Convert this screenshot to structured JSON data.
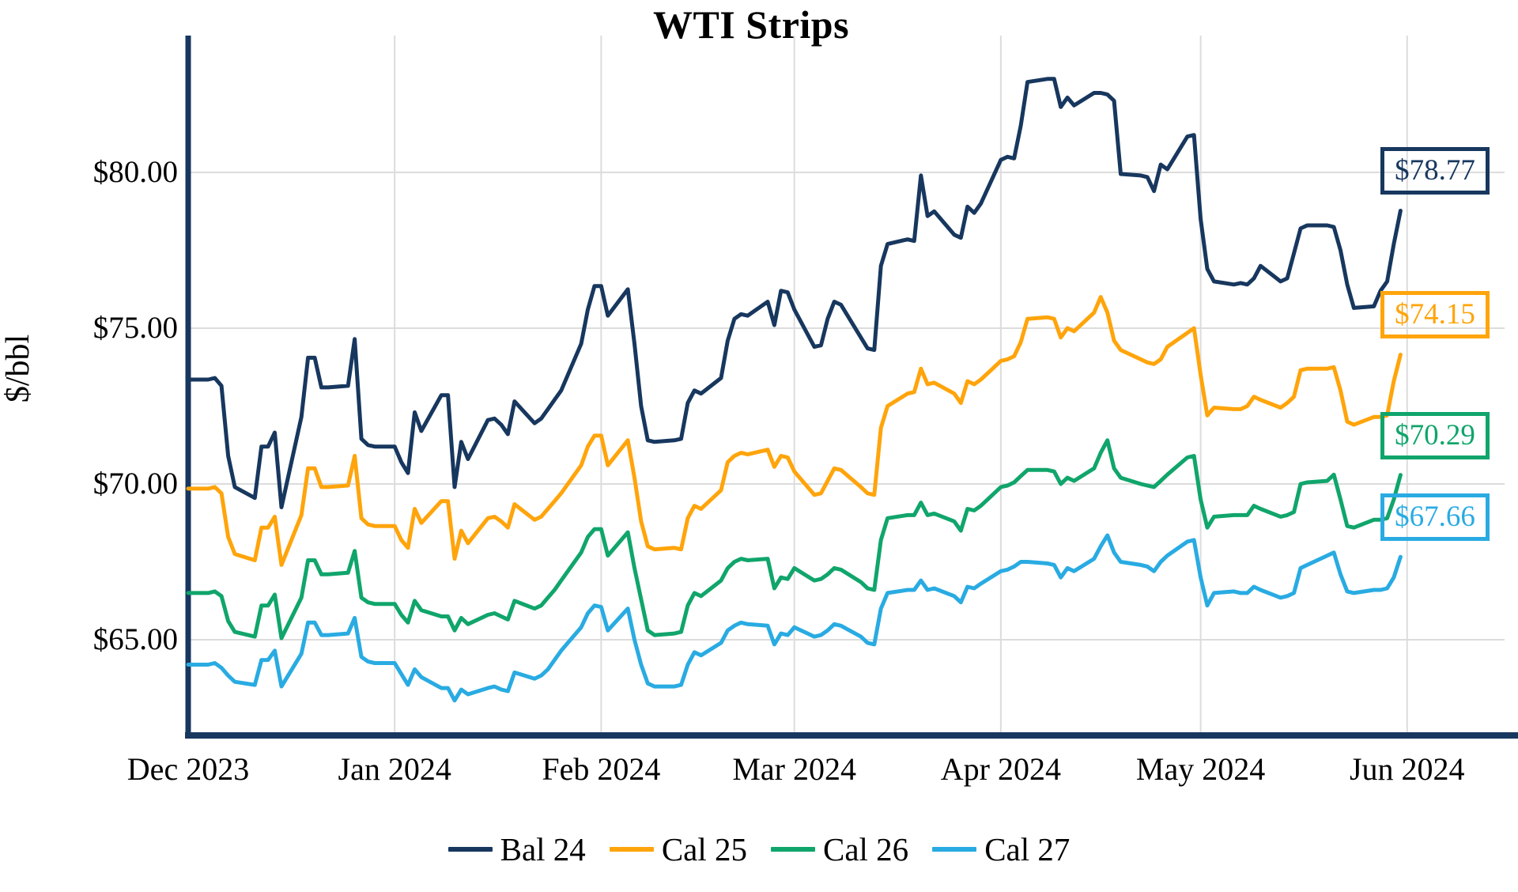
{
  "title": "WTI Strips",
  "y_axis": {
    "label": "$/bbl",
    "ticks": [
      {
        "value": 65,
        "label": "$65.00"
      },
      {
        "value": 70,
        "label": "$70.00"
      },
      {
        "value": 75,
        "label": "$75.00"
      },
      {
        "value": 80,
        "label": "$80.00"
      }
    ]
  },
  "x_axis": {
    "months": [
      {
        "label": "Dec 2023",
        "day": 0
      },
      {
        "label": "Jan 2024",
        "day": 31
      },
      {
        "label": "Feb 2024",
        "day": 62
      },
      {
        "label": "Mar 2024",
        "day": 91
      },
      {
        "label": "Apr 2024",
        "day": 122
      },
      {
        "label": "May 2024",
        "day": 152
      },
      {
        "label": "Jun 2024",
        "day": 183
      }
    ]
  },
  "chart_data": {
    "type": "line",
    "title": "WTI Strips",
    "ylabel": "$/bbl",
    "xlabel": "",
    "ylim": [
      62,
      84.5
    ],
    "grid": true,
    "legend_position": "bottom",
    "x_unit": "calendar day offset from 2023-12-01, weekdays only",
    "days": [
      0,
      3,
      4,
      5,
      6,
      7,
      10,
      11,
      12,
      13,
      14,
      17,
      18,
      19,
      20,
      21,
      24,
      25,
      26,
      27,
      28,
      31,
      32,
      33,
      34,
      35,
      38,
      39,
      40,
      41,
      42,
      45,
      46,
      47,
      48,
      49,
      52,
      53,
      54,
      55,
      56,
      59,
      60,
      61,
      62,
      63,
      66,
      67,
      68,
      69,
      70,
      73,
      74,
      75,
      76,
      77,
      80,
      81,
      82,
      83,
      84,
      87,
      88,
      89,
      90,
      91,
      94,
      95,
      96,
      97,
      98,
      101,
      102,
      103,
      104,
      105,
      108,
      109,
      110,
      111,
      112,
      115,
      116,
      117,
      118,
      119,
      122,
      123,
      124,
      125,
      126,
      129,
      130,
      131,
      132,
      133,
      136,
      137,
      138,
      139,
      140,
      143,
      144,
      145,
      146,
      147,
      150,
      151,
      152,
      153,
      154,
      157,
      158,
      159,
      160,
      161,
      164,
      165,
      166,
      167,
      168,
      171,
      172,
      173,
      174,
      175,
      178,
      179,
      180,
      181,
      182
    ],
    "series": [
      {
        "name": "Bal 24",
        "color": "#17375E",
        "end_label": "$78.77",
        "end_value": 78.77,
        "values": [
          73.35,
          73.35,
          73.4,
          73.15,
          70.9,
          69.9,
          69.55,
          71.2,
          71.2,
          71.65,
          69.25,
          72.15,
          74.05,
          74.05,
          73.1,
          73.1,
          73.15,
          74.65,
          71.45,
          71.25,
          71.2,
          71.2,
          70.7,
          70.35,
          72.3,
          71.7,
          72.85,
          72.85,
          69.9,
          71.35,
          70.8,
          72.05,
          72.1,
          71.9,
          71.6,
          72.65,
          71.95,
          72.1,
          72.4,
          72.7,
          73.0,
          74.5,
          75.6,
          76.35,
          76.35,
          75.4,
          76.25,
          74.5,
          72.5,
          71.4,
          71.35,
          71.4,
          71.45,
          72.6,
          73.0,
          72.9,
          73.4,
          74.6,
          75.3,
          75.45,
          75.4,
          75.85,
          75.1,
          76.2,
          76.15,
          75.6,
          74.4,
          74.45,
          75.3,
          75.85,
          75.75,
          74.7,
          74.35,
          74.3,
          77.0,
          77.7,
          77.85,
          77.8,
          79.9,
          78.6,
          78.75,
          78.0,
          77.9,
          78.9,
          78.7,
          79.0,
          80.4,
          80.5,
          80.45,
          81.5,
          82.9,
          83.0,
          83.0,
          82.1,
          82.4,
          82.15,
          82.55,
          82.55,
          82.5,
          82.3,
          79.95,
          79.9,
          79.85,
          79.4,
          80.25,
          80.1,
          81.15,
          81.2,
          78.5,
          76.9,
          76.5,
          76.4,
          76.45,
          76.4,
          76.6,
          77.0,
          76.5,
          76.6,
          77.4,
          78.2,
          78.3,
          78.3,
          78.25,
          77.5,
          76.4,
          75.65,
          75.7,
          76.2,
          76.5,
          77.7,
          78.77
        ]
      },
      {
        "name": "Cal 25",
        "color": "#FFA40B",
        "end_label": "$74.15",
        "end_value": 74.15,
        "values": [
          69.85,
          69.85,
          69.9,
          69.7,
          68.3,
          67.75,
          67.55,
          68.6,
          68.6,
          68.95,
          67.4,
          69.0,
          70.5,
          70.5,
          69.9,
          69.9,
          69.95,
          70.9,
          68.9,
          68.7,
          68.65,
          68.65,
          68.2,
          67.95,
          69.2,
          68.75,
          69.45,
          69.45,
          67.6,
          68.5,
          68.1,
          68.9,
          68.95,
          68.8,
          68.6,
          69.35,
          68.85,
          68.95,
          69.2,
          69.45,
          69.7,
          70.6,
          71.2,
          71.55,
          71.55,
          70.6,
          71.4,
          70.2,
          68.8,
          68.0,
          67.9,
          67.95,
          67.9,
          68.9,
          69.3,
          69.2,
          69.8,
          70.7,
          70.9,
          71.0,
          70.95,
          71.1,
          70.55,
          70.9,
          70.85,
          70.4,
          69.65,
          69.7,
          70.1,
          70.5,
          70.45,
          69.9,
          69.7,
          69.65,
          71.8,
          72.5,
          72.9,
          72.95,
          73.7,
          73.2,
          73.25,
          72.9,
          72.6,
          73.3,
          73.2,
          73.35,
          73.95,
          74.0,
          74.1,
          74.55,
          75.3,
          75.35,
          75.3,
          74.7,
          75.0,
          74.9,
          75.5,
          76.0,
          75.5,
          74.6,
          74.3,
          74.0,
          73.9,
          73.85,
          74.0,
          74.4,
          74.85,
          75.0,
          73.5,
          72.2,
          72.45,
          72.4,
          72.4,
          72.5,
          72.8,
          72.7,
          72.45,
          72.6,
          72.8,
          73.65,
          73.7,
          73.7,
          73.75,
          73.0,
          72.0,
          71.9,
          72.15,
          72.15,
          72.2,
          73.3,
          74.15
        ]
      },
      {
        "name": "Cal 26",
        "color": "#10A56B",
        "end_label": "$70.29",
        "end_value": 70.29,
        "values": [
          66.5,
          66.5,
          66.55,
          66.4,
          65.6,
          65.25,
          65.1,
          66.1,
          66.1,
          66.45,
          65.05,
          66.35,
          67.55,
          67.55,
          67.1,
          67.1,
          67.15,
          67.85,
          66.35,
          66.2,
          66.15,
          66.15,
          65.8,
          65.55,
          66.25,
          65.95,
          65.75,
          65.75,
          65.3,
          65.7,
          65.5,
          65.8,
          65.85,
          65.75,
          65.65,
          66.25,
          66.0,
          66.1,
          66.35,
          66.6,
          66.9,
          67.8,
          68.3,
          68.55,
          68.55,
          67.7,
          68.45,
          67.3,
          66.3,
          65.3,
          65.15,
          65.2,
          65.25,
          66.1,
          66.5,
          66.4,
          66.9,
          67.3,
          67.5,
          67.6,
          67.55,
          67.6,
          66.65,
          67.0,
          66.95,
          67.3,
          66.9,
          66.95,
          67.1,
          67.3,
          67.25,
          66.85,
          66.65,
          66.6,
          68.2,
          68.9,
          69.0,
          69.0,
          69.4,
          69.0,
          69.05,
          68.8,
          68.5,
          69.2,
          69.15,
          69.3,
          69.9,
          69.95,
          70.05,
          70.25,
          70.45,
          70.45,
          70.4,
          70.0,
          70.2,
          70.1,
          70.5,
          71.0,
          71.4,
          70.5,
          70.2,
          70.0,
          69.95,
          69.9,
          70.1,
          70.3,
          70.85,
          70.9,
          69.5,
          68.6,
          68.95,
          69.0,
          69.0,
          69.0,
          69.3,
          69.2,
          68.95,
          69.0,
          69.1,
          70.0,
          70.05,
          70.1,
          70.3,
          69.5,
          68.65,
          68.6,
          68.85,
          68.85,
          68.9,
          69.5,
          70.29
        ]
      },
      {
        "name": "Cal 27",
        "color": "#29ABE2",
        "end_label": "$67.66",
        "end_value": 67.66,
        "values": [
          64.2,
          64.2,
          64.25,
          64.1,
          63.85,
          63.65,
          63.55,
          64.35,
          64.35,
          64.65,
          63.5,
          64.55,
          65.55,
          65.55,
          65.15,
          65.15,
          65.2,
          65.7,
          64.45,
          64.3,
          64.25,
          64.25,
          63.9,
          63.55,
          64.05,
          63.8,
          63.45,
          63.45,
          63.05,
          63.4,
          63.25,
          63.45,
          63.5,
          63.4,
          63.35,
          63.95,
          63.75,
          63.85,
          64.05,
          64.35,
          64.65,
          65.4,
          65.85,
          66.1,
          66.05,
          65.3,
          66.0,
          65.0,
          64.2,
          63.6,
          63.5,
          63.5,
          63.55,
          64.2,
          64.6,
          64.5,
          64.9,
          65.3,
          65.45,
          65.55,
          65.5,
          65.45,
          64.85,
          65.2,
          65.15,
          65.4,
          65.1,
          65.15,
          65.3,
          65.5,
          65.45,
          65.1,
          64.9,
          64.85,
          66.0,
          66.5,
          66.6,
          66.6,
          66.9,
          66.6,
          66.65,
          66.4,
          66.2,
          66.7,
          66.65,
          66.8,
          67.2,
          67.25,
          67.35,
          67.5,
          67.5,
          67.45,
          67.4,
          67.0,
          67.3,
          67.2,
          67.6,
          68.0,
          68.35,
          67.8,
          67.5,
          67.4,
          67.35,
          67.2,
          67.5,
          67.7,
          68.15,
          68.2,
          67.0,
          66.1,
          66.5,
          66.55,
          66.5,
          66.5,
          66.7,
          66.6,
          66.35,
          66.4,
          66.5,
          67.3,
          67.4,
          67.7,
          67.8,
          67.1,
          66.55,
          66.5,
          66.6,
          66.6,
          66.65,
          67.0,
          67.66
        ]
      }
    ],
    "colors": {
      "axis_spine": "#17375E",
      "gridline": "#DCDCDC",
      "background": "#FFFFFF",
      "text": "#000000"
    }
  }
}
